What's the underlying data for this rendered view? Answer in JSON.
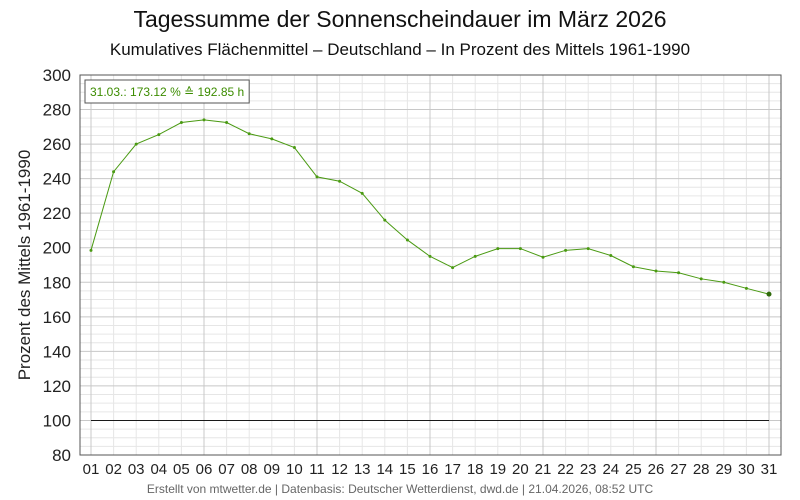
{
  "title": "Tagessumme der Sonnenscheindauer im März 2026",
  "subtitle": "Kumulatives Flächenmittel – Deutschland – In Prozent des Mittels 1961-1990",
  "footer": "Erstellt von mtwetter.de | Datenbasis: Deutscher Wetterdienst, dwd.de | 21.04.2026, 08:52 UTC",
  "colors": {
    "series": "#4a9a12",
    "reference_line": "#000000",
    "grid_major": "#c8c8c8",
    "grid_minor": "#e6e6e6",
    "annotation": "#3c8c00"
  },
  "chart_data": {
    "type": "line",
    "title": "Tagessumme der Sonnenscheindauer im März 2026",
    "subtitle": "Kumulatives Flächenmittel – Deutschland – In Prozent des Mittels 1961-1990",
    "xlabel": "",
    "ylabel": "Prozent des Mittels 1961-1990",
    "categories": [
      "01",
      "02",
      "03",
      "04",
      "05",
      "06",
      "07",
      "08",
      "09",
      "10",
      "11",
      "12",
      "13",
      "14",
      "15",
      "16",
      "17",
      "18",
      "19",
      "20",
      "21",
      "22",
      "23",
      "24",
      "25",
      "26",
      "27",
      "28",
      "29",
      "30",
      "31"
    ],
    "series": [
      {
        "values": [
          198.5,
          244,
          260,
          265.5,
          272.5,
          274,
          272.5,
          266,
          263,
          258,
          241,
          238.5,
          231.5,
          216,
          204.5,
          195,
          188.5,
          195,
          199.5,
          199.5,
          194.5,
          198.5,
          199.5,
          195.5,
          189,
          186.5,
          185.5,
          182,
          180,
          176.5,
          173.12
        ]
      }
    ],
    "reference_line": 100,
    "ylim": [
      80,
      300
    ],
    "yticks": [
      80,
      100,
      120,
      140,
      160,
      180,
      200,
      220,
      240,
      260,
      280,
      300
    ],
    "grid": true,
    "annotation": "31.03.: 173.12 % ≙ 192.85 h"
  }
}
